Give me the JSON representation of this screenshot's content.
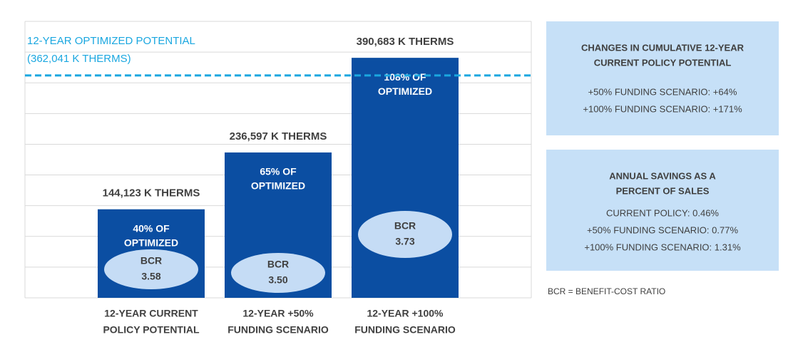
{
  "chart_data": {
    "type": "bar",
    "categories": [
      [
        "12-YEAR CURRENT",
        "POLICY POTENTIAL"
      ],
      [
        "12-YEAR +50%",
        "FUNDING SCENARIO"
      ],
      [
        "12-YEAR +100%",
        "FUNDING SCENARIO"
      ]
    ],
    "values": [
      144123,
      236597,
      390683
    ],
    "value_labels": [
      "144,123 K THERMS",
      "236,597 K THERMS",
      "390,683 K THERMS"
    ],
    "inner_labels": [
      [
        "40% OF",
        "OPTIMIZED"
      ],
      [
        "65% OF",
        "OPTIMIZED"
      ],
      [
        "108% OF",
        "OPTIMIZED"
      ]
    ],
    "bcr_title": "BCR",
    "bcr": [
      3.58,
      3.5,
      3.73
    ],
    "bcr_labels": [
      "3.58",
      "3.50",
      "3.73"
    ],
    "color": "#0b4ea2",
    "ylim": [
      0,
      450000
    ],
    "yticks": [
      0,
      50000,
      100000,
      150000,
      200000,
      250000,
      300000,
      350000,
      400000,
      450000
    ],
    "grid": true,
    "reference": {
      "value": 362041,
      "label": [
        "12-YEAR OPTIMIZED POTENTIAL",
        "(362,041 K THERMS)"
      ],
      "color": "#1aa7e0"
    },
    "panels": [
      {
        "title": [
          "CHANGES IN CUMULATIVE 12-YEAR",
          "CURRENT POLICY POTENTIAL"
        ],
        "lines": [
          "+50% FUNDING SCENARIO: +64%",
          "+100% FUNDING SCENARIO: +171%"
        ]
      },
      {
        "title": [
          "ANNUAL SAVINGS AS A",
          "PERCENT OF SALES"
        ],
        "lines": [
          "CURRENT POLICY: 0.46%",
          "+50% FUNDING SCENARIO: 0.77%",
          "+100% FUNDING SCENARIO: 1.31%"
        ]
      }
    ],
    "footnote": "BCR = BENEFIT-COST RATIO"
  }
}
